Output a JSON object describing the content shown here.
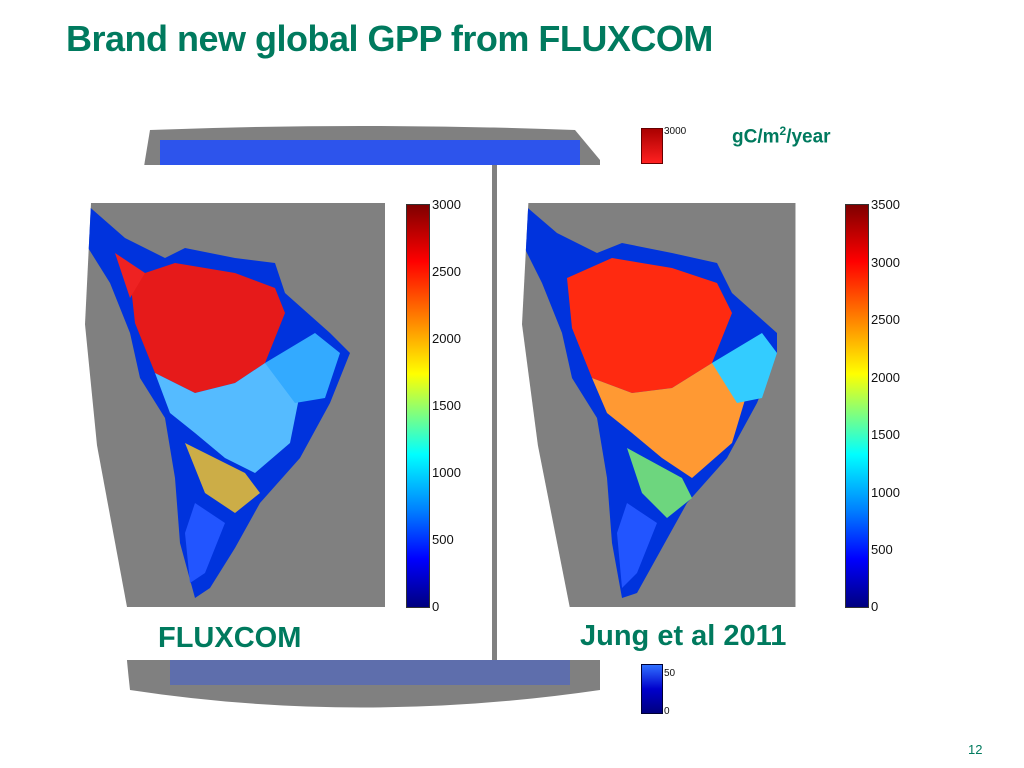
{
  "slide": {
    "title": "Brand new global GPP from FLUXCOM",
    "unit": {
      "base": "gC/m",
      "exp": "2",
      "suffix": "/year"
    },
    "page_number": "12"
  },
  "background_colorbar": {
    "top_label": "3000",
    "bottom_labels": [
      "50",
      "0"
    ]
  },
  "panels": [
    {
      "caption": "FLUXCOM",
      "colorbar_ticks": [
        "3000",
        "2500",
        "2000",
        "1500",
        "1000",
        "500",
        "0"
      ],
      "range": [
        0,
        3000
      ]
    },
    {
      "caption": "Jung et al 2011",
      "colorbar_ticks": [
        "3500",
        "3000",
        "2500",
        "2000",
        "1500",
        "1000",
        "500",
        "0"
      ],
      "range": [
        0,
        3500
      ]
    }
  ],
  "colors": {
    "title": "#007a5e",
    "ocean": "#808080"
  }
}
